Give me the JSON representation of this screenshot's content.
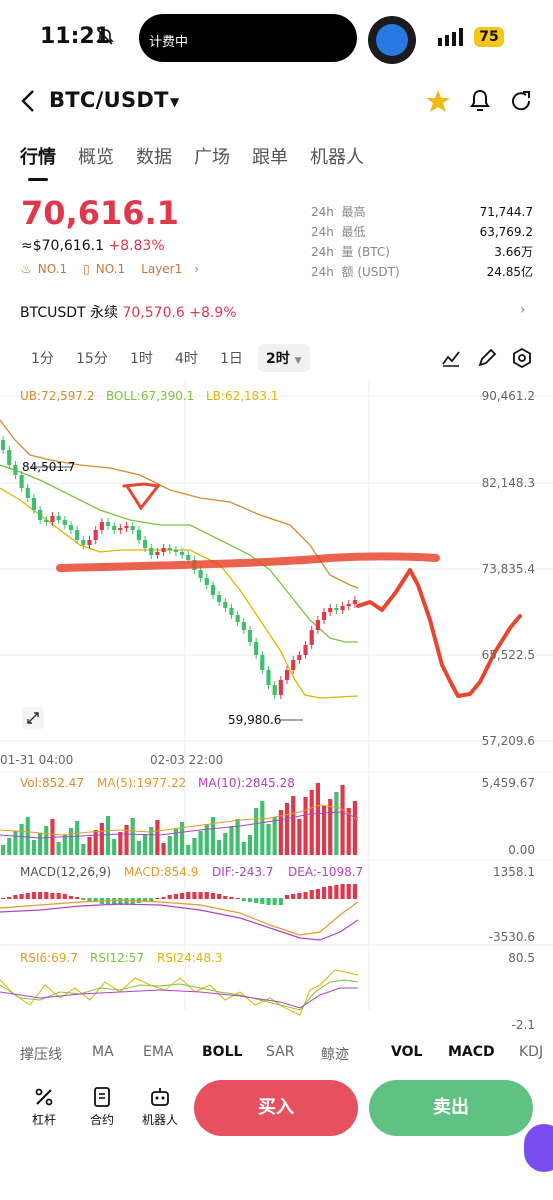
{
  "status": {
    "time": "11:21",
    "island_text": "计费中",
    "battery": "75"
  },
  "header": {
    "pair": "BTC/USDT"
  },
  "tabs": [
    "行情",
    "概览",
    "数据",
    "广场",
    "跟单",
    "机器人"
  ],
  "price": {
    "last": "70,616.1",
    "approx": "≈$70,616.1",
    "change": "+8.83%",
    "tags": [
      "NO.1",
      "NO.1",
      "Layer1"
    ]
  },
  "stats": [
    {
      "p": "24h",
      "k": "最高",
      "v": "71,744.7"
    },
    {
      "p": "24h",
      "k": "最低",
      "v": "63,769.2"
    },
    {
      "p": "24h",
      "k": "量 (BTC)",
      "v": "3.66万"
    },
    {
      "p": "24h",
      "k": "额 (USDT)",
      "v": "24.85亿"
    }
  ],
  "perp": {
    "name": "BTCUSDT 永续",
    "price": "70,570.6",
    "change": "+8.9%"
  },
  "timeframes": [
    "1分",
    "15分",
    "1时",
    "4时",
    "1日",
    "2时"
  ],
  "active_timeframe": "2时",
  "boll": {
    "ub": "UB:72,597.2",
    "boll": "BOLL:67,390.1",
    "lb": "LB:62,183.1"
  },
  "price_axis": [
    "90,461.2",
    "82,148.3",
    "73,835.4",
    "65,522.5",
    "57,209.6"
  ],
  "annotations": {
    "high": "84,501.7",
    "low": "59,980.6"
  },
  "time_axis": [
    "01-31 04:00",
    "02-03 22:00"
  ],
  "vol": {
    "vol": "Vol:852.47",
    "ma5": "MA(5):1977.22",
    "ma10": "MA(10):2845.28",
    "axis": [
      "5,459.67",
      "0.00"
    ]
  },
  "macd": {
    "label": "MACD(12,26,9)",
    "macd": "MACD:854.9",
    "dif": "DIF:-243.7",
    "dea": "DEA:-1098.7",
    "axis": [
      "1358.1",
      "-3530.6"
    ]
  },
  "rsi": {
    "r6": "RSI6:69.7",
    "r12": "RSI12:57",
    "r24": "RSI24:48.3",
    "axis": [
      "80.5",
      "-2.1"
    ]
  },
  "indicator_tabs": [
    "撑压线",
    "MA",
    "EMA",
    "BOLL",
    "SAR",
    "鲸迹",
    "VOL",
    "MACD",
    "KDJ"
  ],
  "active_indicators": [
    "BOLL",
    "VOL",
    "MACD"
  ],
  "actions": [
    "杠杆",
    "合约",
    "机器人"
  ],
  "buy": "买入",
  "sell": "卖出",
  "colors": {
    "up": "#e0384b",
    "down": "#3fbf6f",
    "ub": "#d98a2b",
    "boll": "#7cc43c",
    "lb": "#e0b400",
    "ma5": "#e69a2c",
    "ma10": "#b043c2"
  }
}
